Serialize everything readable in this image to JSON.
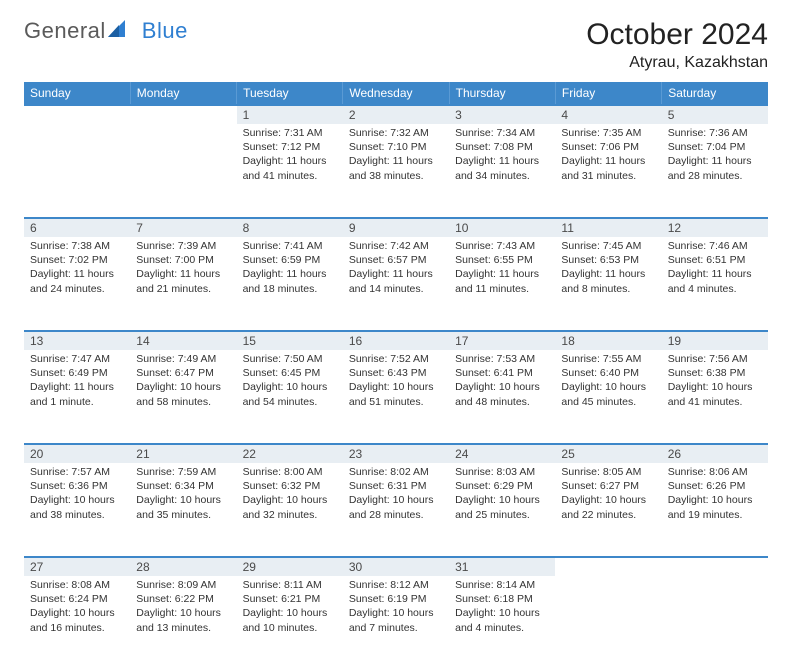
{
  "logo": {
    "text_general": "General",
    "text_blue": "Blue"
  },
  "title": "October 2024",
  "location": "Atyrau, Kazakhstan",
  "colors": {
    "header_bg": "#3d87c9",
    "header_text": "#ffffff",
    "daynum_bg": "#e8eef3",
    "daynum_border": "#3d87c9",
    "text": "#333333",
    "page_bg": "#ffffff"
  },
  "weekday_labels": [
    "Sunday",
    "Monday",
    "Tuesday",
    "Wednesday",
    "Thursday",
    "Friday",
    "Saturday"
  ],
  "weeks": [
    [
      {
        "blank": true
      },
      {
        "blank": true
      },
      {
        "day": "1",
        "sunrise": "Sunrise: 7:31 AM",
        "sunset": "Sunset: 7:12 PM",
        "daylight": "Daylight: 11 hours and 41 minutes."
      },
      {
        "day": "2",
        "sunrise": "Sunrise: 7:32 AM",
        "sunset": "Sunset: 7:10 PM",
        "daylight": "Daylight: 11 hours and 38 minutes."
      },
      {
        "day": "3",
        "sunrise": "Sunrise: 7:34 AM",
        "sunset": "Sunset: 7:08 PM",
        "daylight": "Daylight: 11 hours and 34 minutes."
      },
      {
        "day": "4",
        "sunrise": "Sunrise: 7:35 AM",
        "sunset": "Sunset: 7:06 PM",
        "daylight": "Daylight: 11 hours and 31 minutes."
      },
      {
        "day": "5",
        "sunrise": "Sunrise: 7:36 AM",
        "sunset": "Sunset: 7:04 PM",
        "daylight": "Daylight: 11 hours and 28 minutes."
      }
    ],
    [
      {
        "day": "6",
        "sunrise": "Sunrise: 7:38 AM",
        "sunset": "Sunset: 7:02 PM",
        "daylight": "Daylight: 11 hours and 24 minutes."
      },
      {
        "day": "7",
        "sunrise": "Sunrise: 7:39 AM",
        "sunset": "Sunset: 7:00 PM",
        "daylight": "Daylight: 11 hours and 21 minutes."
      },
      {
        "day": "8",
        "sunrise": "Sunrise: 7:41 AM",
        "sunset": "Sunset: 6:59 PM",
        "daylight": "Daylight: 11 hours and 18 minutes."
      },
      {
        "day": "9",
        "sunrise": "Sunrise: 7:42 AM",
        "sunset": "Sunset: 6:57 PM",
        "daylight": "Daylight: 11 hours and 14 minutes."
      },
      {
        "day": "10",
        "sunrise": "Sunrise: 7:43 AM",
        "sunset": "Sunset: 6:55 PM",
        "daylight": "Daylight: 11 hours and 11 minutes."
      },
      {
        "day": "11",
        "sunrise": "Sunrise: 7:45 AM",
        "sunset": "Sunset: 6:53 PM",
        "daylight": "Daylight: 11 hours and 8 minutes."
      },
      {
        "day": "12",
        "sunrise": "Sunrise: 7:46 AM",
        "sunset": "Sunset: 6:51 PM",
        "daylight": "Daylight: 11 hours and 4 minutes."
      }
    ],
    [
      {
        "day": "13",
        "sunrise": "Sunrise: 7:47 AM",
        "sunset": "Sunset: 6:49 PM",
        "daylight": "Daylight: 11 hours and 1 minute."
      },
      {
        "day": "14",
        "sunrise": "Sunrise: 7:49 AM",
        "sunset": "Sunset: 6:47 PM",
        "daylight": "Daylight: 10 hours and 58 minutes."
      },
      {
        "day": "15",
        "sunrise": "Sunrise: 7:50 AM",
        "sunset": "Sunset: 6:45 PM",
        "daylight": "Daylight: 10 hours and 54 minutes."
      },
      {
        "day": "16",
        "sunrise": "Sunrise: 7:52 AM",
        "sunset": "Sunset: 6:43 PM",
        "daylight": "Daylight: 10 hours and 51 minutes."
      },
      {
        "day": "17",
        "sunrise": "Sunrise: 7:53 AM",
        "sunset": "Sunset: 6:41 PM",
        "daylight": "Daylight: 10 hours and 48 minutes."
      },
      {
        "day": "18",
        "sunrise": "Sunrise: 7:55 AM",
        "sunset": "Sunset: 6:40 PM",
        "daylight": "Daylight: 10 hours and 45 minutes."
      },
      {
        "day": "19",
        "sunrise": "Sunrise: 7:56 AM",
        "sunset": "Sunset: 6:38 PM",
        "daylight": "Daylight: 10 hours and 41 minutes."
      }
    ],
    [
      {
        "day": "20",
        "sunrise": "Sunrise: 7:57 AM",
        "sunset": "Sunset: 6:36 PM",
        "daylight": "Daylight: 10 hours and 38 minutes."
      },
      {
        "day": "21",
        "sunrise": "Sunrise: 7:59 AM",
        "sunset": "Sunset: 6:34 PM",
        "daylight": "Daylight: 10 hours and 35 minutes."
      },
      {
        "day": "22",
        "sunrise": "Sunrise: 8:00 AM",
        "sunset": "Sunset: 6:32 PM",
        "daylight": "Daylight: 10 hours and 32 minutes."
      },
      {
        "day": "23",
        "sunrise": "Sunrise: 8:02 AM",
        "sunset": "Sunset: 6:31 PM",
        "daylight": "Daylight: 10 hours and 28 minutes."
      },
      {
        "day": "24",
        "sunrise": "Sunrise: 8:03 AM",
        "sunset": "Sunset: 6:29 PM",
        "daylight": "Daylight: 10 hours and 25 minutes."
      },
      {
        "day": "25",
        "sunrise": "Sunrise: 8:05 AM",
        "sunset": "Sunset: 6:27 PM",
        "daylight": "Daylight: 10 hours and 22 minutes."
      },
      {
        "day": "26",
        "sunrise": "Sunrise: 8:06 AM",
        "sunset": "Sunset: 6:26 PM",
        "daylight": "Daylight: 10 hours and 19 minutes."
      }
    ],
    [
      {
        "day": "27",
        "sunrise": "Sunrise: 8:08 AM",
        "sunset": "Sunset: 6:24 PM",
        "daylight": "Daylight: 10 hours and 16 minutes."
      },
      {
        "day": "28",
        "sunrise": "Sunrise: 8:09 AM",
        "sunset": "Sunset: 6:22 PM",
        "daylight": "Daylight: 10 hours and 13 minutes."
      },
      {
        "day": "29",
        "sunrise": "Sunrise: 8:11 AM",
        "sunset": "Sunset: 6:21 PM",
        "daylight": "Daylight: 10 hours and 10 minutes."
      },
      {
        "day": "30",
        "sunrise": "Sunrise: 8:12 AM",
        "sunset": "Sunset: 6:19 PM",
        "daylight": "Daylight: 10 hours and 7 minutes."
      },
      {
        "day": "31",
        "sunrise": "Sunrise: 8:14 AM",
        "sunset": "Sunset: 6:18 PM",
        "daylight": "Daylight: 10 hours and 4 minutes."
      },
      {
        "blank": true
      },
      {
        "blank": true
      }
    ]
  ]
}
